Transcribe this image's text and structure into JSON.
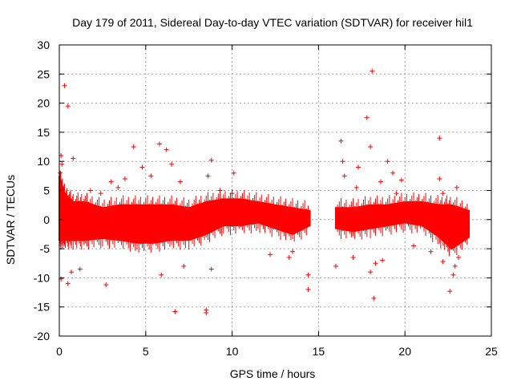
{
  "chart_data": {
    "type": "scatter",
    "title": "Day 179 of 2011, Sidereal Day-to-day VTEC variation (SDTVAR) for receiver hil1",
    "xlabel": "GPS time / hours",
    "ylabel": "SDTVAR / TECUs",
    "xlim": [
      0,
      25
    ],
    "ylim": [
      -20,
      30
    ],
    "xticks": [
      "0",
      "5",
      "10",
      "15",
      "20",
      "25"
    ],
    "yticks": [
      "-20",
      "-15",
      "-10",
      "-5",
      "0",
      "5",
      "10",
      "15",
      "20",
      "25",
      "30"
    ],
    "grid": true,
    "marker": "+",
    "color": "#ff0000",
    "data_gap": [
      14.6,
      15.9
    ],
    "band": [
      {
        "x": 0.0,
        "low": -3.5,
        "high": 7.5
      },
      {
        "x": 0.3,
        "low": -3.5,
        "high": 4.5
      },
      {
        "x": 0.8,
        "low": -3.5,
        "high": 3.0
      },
      {
        "x": 1.5,
        "low": -3.5,
        "high": 3.0
      },
      {
        "x": 2.5,
        "low": -3.2,
        "high": 2.0
      },
      {
        "x": 3.5,
        "low": -3.5,
        "high": 2.5
      },
      {
        "x": 4.5,
        "low": -4.0,
        "high": 2.5
      },
      {
        "x": 5.5,
        "low": -4.0,
        "high": 2.5
      },
      {
        "x": 6.5,
        "low": -3.5,
        "high": 2.5
      },
      {
        "x": 7.5,
        "low": -3.5,
        "high": 2.0
      },
      {
        "x": 8.5,
        "low": -2.5,
        "high": 3.0
      },
      {
        "x": 9.5,
        "low": -1.0,
        "high": 3.5
      },
      {
        "x": 10.5,
        "low": -1.0,
        "high": 3.5
      },
      {
        "x": 11.5,
        "low": -0.5,
        "high": 3.0
      },
      {
        "x": 12.5,
        "low": -1.5,
        "high": 2.5
      },
      {
        "x": 13.5,
        "low": -2.5,
        "high": 2.0
      },
      {
        "x": 14.5,
        "low": -1.0,
        "high": 1.5
      },
      {
        "x": 16.0,
        "low": -1.5,
        "high": 2.0
      },
      {
        "x": 17.0,
        "low": -2.0,
        "high": 2.0
      },
      {
        "x": 18.0,
        "low": -1.5,
        "high": 2.5
      },
      {
        "x": 19.0,
        "low": -1.0,
        "high": 2.5
      },
      {
        "x": 20.0,
        "low": -0.5,
        "high": 3.0
      },
      {
        "x": 21.0,
        "low": -1.0,
        "high": 3.0
      },
      {
        "x": 22.0,
        "low": -3.0,
        "high": 2.5
      },
      {
        "x": 22.7,
        "low": -5.0,
        "high": 2.5
      },
      {
        "x": 23.7,
        "low": -3.0,
        "high": 1.5
      }
    ],
    "outliers": [
      [
        0.1,
        11.0
      ],
      [
        0.15,
        9.5
      ],
      [
        0.05,
        8.0
      ],
      [
        0.3,
        23.0
      ],
      [
        0.5,
        19.5
      ],
      [
        0.8,
        10.5
      ],
      [
        0.1,
        -10.2
      ],
      [
        0.5,
        -11.0
      ],
      [
        0.7,
        -9.0
      ],
      [
        1.2,
        -8.5
      ],
      [
        2.7,
        -11.2
      ],
      [
        1.8,
        5.0
      ],
      [
        2.4,
        4.5
      ],
      [
        3.0,
        6.5
      ],
      [
        3.4,
        5.5
      ],
      [
        3.8,
        7.0
      ],
      [
        4.3,
        12.5
      ],
      [
        4.8,
        9.0
      ],
      [
        5.3,
        7.5
      ],
      [
        5.8,
        13.0
      ],
      [
        6.2,
        12.0
      ],
      [
        6.5,
        9.5
      ],
      [
        6.7,
        -15.8
      ],
      [
        7.0,
        6.5
      ],
      [
        5.9,
        -9.5
      ],
      [
        8.5,
        -15.5
      ],
      [
        8.5,
        -16.0
      ],
      [
        8.8,
        10.2
      ],
      [
        9.3,
        5.0
      ],
      [
        10.0,
        4.5
      ],
      [
        10.1,
        8.0
      ],
      [
        8.6,
        7.5
      ],
      [
        8.8,
        -8.5
      ],
      [
        7.2,
        -8.0
      ],
      [
        12.2,
        -6.0
      ],
      [
        13.3,
        -6.5
      ],
      [
        13.5,
        -5.5
      ],
      [
        14.4,
        -9.5
      ],
      [
        14.4,
        -12.0
      ],
      [
        16.0,
        -8.0
      ],
      [
        16.3,
        13.5
      ],
      [
        16.4,
        10.0
      ],
      [
        17.8,
        17.5
      ],
      [
        18.1,
        25.5
      ],
      [
        18.0,
        12.5
      ],
      [
        18.2,
        -13.5
      ],
      [
        18.0,
        -9.0
      ],
      [
        18.3,
        -7.5
      ],
      [
        17.3,
        9.0
      ],
      [
        18.6,
        6.5
      ],
      [
        19.0,
        10.0
      ],
      [
        19.3,
        8.0
      ],
      [
        19.8,
        6.8
      ],
      [
        16.5,
        7.5
      ],
      [
        17.2,
        5.5
      ],
      [
        17.0,
        -6.5
      ],
      [
        18.7,
        -7.0
      ],
      [
        22.0,
        14.0
      ],
      [
        22.0,
        7.0
      ],
      [
        22.2,
        4.5
      ],
      [
        22.6,
        -12.3
      ],
      [
        22.8,
        -9.5
      ],
      [
        22.9,
        -8.0
      ],
      [
        23.1,
        -6.5
      ],
      [
        22.2,
        -7.2
      ],
      [
        23.0,
        5.5
      ],
      [
        21.5,
        -5.5
      ],
      [
        20.5,
        -4.5
      ],
      [
        19.5,
        4.5
      ],
      [
        0.9,
        2.0
      ]
    ]
  }
}
